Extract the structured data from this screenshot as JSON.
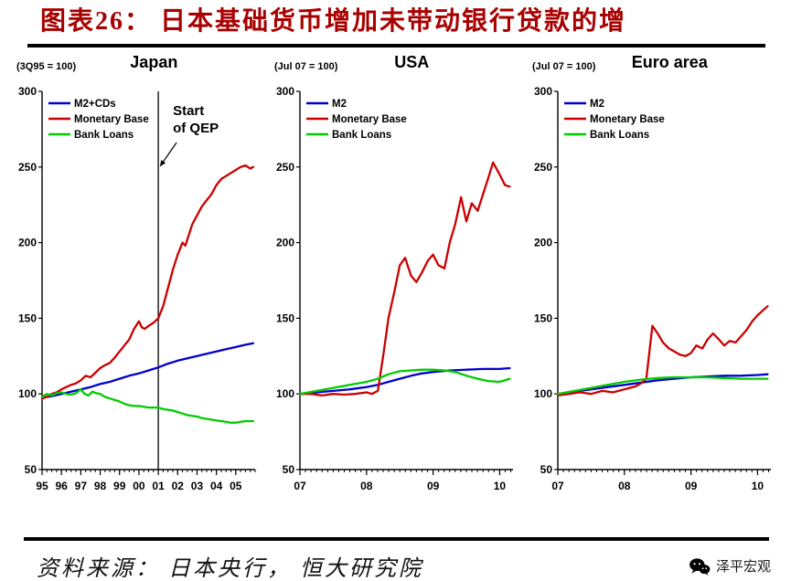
{
  "header": {
    "title": "图表26： 日本基础货币增加未带动银行贷款的增"
  },
  "footer": {
    "source": "资料来源： 日本央行， 恒大研究院",
    "brand": "泽平宏观"
  },
  "colors": {
    "title": "#a80000",
    "m2_blue": "#0000cc",
    "base_red": "#cc0000",
    "loans_green": "#00cc00"
  },
  "chart_data": [
    {
      "type": "line",
      "title": "Japan",
      "axis_note": "(3Q95 = 100)",
      "ylim": [
        50,
        300
      ],
      "ytick_step": 50,
      "xlim": [
        1995,
        2006
      ],
      "minor_xtick_step": 0.25,
      "xticks": [
        {
          "v": 1995,
          "label": "95"
        },
        {
          "v": 1996,
          "label": "96"
        },
        {
          "v": 1997,
          "label": "97"
        },
        {
          "v": 1998,
          "label": "98"
        },
        {
          "v": 1999,
          "label": "99"
        },
        {
          "v": 2000,
          "label": "00"
        },
        {
          "v": 2001,
          "label": "01"
        },
        {
          "v": 2002,
          "label": "02"
        },
        {
          "v": 2003,
          "label": "03"
        },
        {
          "v": 2004,
          "label": "04"
        },
        {
          "v": 2005,
          "label": "05"
        }
      ],
      "annotation": {
        "lines": [
          "Start",
          "of QEP"
        ],
        "x": 2001
      },
      "series": [
        {
          "name": "M2+CDs",
          "color": "#0000cc",
          "points": [
            [
              1995,
              97.5
            ],
            [
              1995.5,
              98.5
            ],
            [
              1996,
              100
            ],
            [
              1996.5,
              101.5
            ],
            [
              1997,
              103
            ],
            [
              1997.5,
              104.5
            ],
            [
              1998,
              106.5
            ],
            [
              1998.5,
              108
            ],
            [
              1999,
              110
            ],
            [
              1999.5,
              112
            ],
            [
              2000,
              113.5
            ],
            [
              2000.5,
              115.5
            ],
            [
              2001,
              117.5
            ],
            [
              2001.5,
              120
            ],
            [
              2002,
              122
            ],
            [
              2002.5,
              123.5
            ],
            [
              2003,
              125
            ],
            [
              2003.5,
              126.5
            ],
            [
              2004,
              128
            ],
            [
              2004.5,
              129.5
            ],
            [
              2005,
              131
            ],
            [
              2005.5,
              132.5
            ],
            [
              2005.9,
              133.5
            ]
          ]
        },
        {
          "name": "Monetary Base",
          "color": "#cc0000",
          "points": [
            [
              1995,
              97
            ],
            [
              1995.25,
              98
            ],
            [
              1995.5,
              100
            ],
            [
              1995.75,
              101
            ],
            [
              1996,
              103
            ],
            [
              1996.25,
              104.5
            ],
            [
              1996.5,
              106
            ],
            [
              1996.75,
              107
            ],
            [
              1997,
              109
            ],
            [
              1997.25,
              112
            ],
            [
              1997.5,
              111
            ],
            [
              1997.75,
              114
            ],
            [
              1998,
              117
            ],
            [
              1998.25,
              119
            ],
            [
              1998.5,
              120.5
            ],
            [
              1998.75,
              124
            ],
            [
              1999,
              128
            ],
            [
              1999.25,
              132
            ],
            [
              1999.5,
              136
            ],
            [
              1999.75,
              143
            ],
            [
              2000,
              148
            ],
            [
              2000.15,
              144
            ],
            [
              2000.3,
              143
            ],
            [
              2000.5,
              145
            ],
            [
              2000.75,
              147
            ],
            [
              2001,
              150
            ],
            [
              2001.25,
              158
            ],
            [
              2001.5,
              170
            ],
            [
              2001.75,
              182
            ],
            [
              2002,
              192
            ],
            [
              2002.25,
              200
            ],
            [
              2002.4,
              198
            ],
            [
              2002.6,
              206
            ],
            [
              2002.75,
              212
            ],
            [
              2003,
              218
            ],
            [
              2003.25,
              224
            ],
            [
              2003.5,
              228
            ],
            [
              2003.75,
              232
            ],
            [
              2004,
              238
            ],
            [
              2004.25,
              242
            ],
            [
              2004.5,
              244
            ],
            [
              2004.75,
              246
            ],
            [
              2005,
              248
            ],
            [
              2005.25,
              250
            ],
            [
              2005.5,
              251
            ],
            [
              2005.75,
              249
            ],
            [
              2005.9,
              250
            ]
          ]
        },
        {
          "name": "Bank Loans",
          "color": "#00cc00",
          "points": [
            [
              1995,
              98
            ],
            [
              1995.25,
              100
            ],
            [
              1995.5,
              99
            ],
            [
              1995.75,
              100.5
            ],
            [
              1996,
              101
            ],
            [
              1996.25,
              100
            ],
            [
              1996.5,
              99.5
            ],
            [
              1996.75,
              100.5
            ],
            [
              1997,
              103
            ],
            [
              1997.2,
              100
            ],
            [
              1997.4,
              99
            ],
            [
              1997.6,
              101.5
            ],
            [
              1997.8,
              100.5
            ],
            [
              1998,
              100
            ],
            [
              1998.25,
              98
            ],
            [
              1998.5,
              97
            ],
            [
              1998.75,
              96
            ],
            [
              1999,
              95
            ],
            [
              1999.25,
              93.5
            ],
            [
              1999.5,
              92.5
            ],
            [
              1999.75,
              92
            ],
            [
              2000,
              92
            ],
            [
              2000.25,
              91.5
            ],
            [
              2000.5,
              91
            ],
            [
              2000.75,
              91
            ],
            [
              2001,
              91
            ],
            [
              2001.25,
              90
            ],
            [
              2001.5,
              89.5
            ],
            [
              2001.75,
              89
            ],
            [
              2002,
              88
            ],
            [
              2002.25,
              87
            ],
            [
              2002.5,
              86
            ],
            [
              2002.75,
              85.5
            ],
            [
              2003,
              85
            ],
            [
              2003.25,
              84
            ],
            [
              2003.5,
              83.5
            ],
            [
              2003.75,
              83
            ],
            [
              2004,
              82.5
            ],
            [
              2004.25,
              82
            ],
            [
              2004.5,
              81.5
            ],
            [
              2004.75,
              81
            ],
            [
              2005,
              81
            ],
            [
              2005.25,
              81.5
            ],
            [
              2005.5,
              82
            ],
            [
              2005.9,
              82
            ]
          ]
        }
      ]
    },
    {
      "type": "line",
      "title": "USA",
      "axis_note": "(Jul 07 = 100)",
      "ylim": [
        50,
        300
      ],
      "ytick_step": 50,
      "xlim": [
        0,
        3.2
      ],
      "minor_xtick_step": 0.0833,
      "xticks": [
        {
          "v": 0,
          "label": "07"
        },
        {
          "v": 1,
          "label": "08"
        },
        {
          "v": 2,
          "label": "09"
        },
        {
          "v": 3,
          "label": "10"
        }
      ],
      "series": [
        {
          "name": "M2",
          "color": "#0000cc",
          "points": [
            [
              0,
              100
            ],
            [
              0.25,
              101
            ],
            [
              0.5,
              102
            ],
            [
              0.75,
              103
            ],
            [
              1,
              104.5
            ],
            [
              1.17,
              106
            ],
            [
              1.33,
              108
            ],
            [
              1.5,
              110
            ],
            [
              1.67,
              112
            ],
            [
              1.83,
              113.5
            ],
            [
              2,
              114.5
            ],
            [
              2.25,
              115.5
            ],
            [
              2.5,
              116
            ],
            [
              2.75,
              116.5
            ],
            [
              3,
              116.5
            ],
            [
              3.15,
              117
            ]
          ]
        },
        {
          "name": "Monetary Base",
          "color": "#cc0000",
          "points": [
            [
              0,
              100
            ],
            [
              0.17,
              100
            ],
            [
              0.33,
              99
            ],
            [
              0.5,
              100
            ],
            [
              0.67,
              99.5
            ],
            [
              0.83,
              100
            ],
            [
              1,
              101
            ],
            [
              1.08,
              100
            ],
            [
              1.17,
              102
            ],
            [
              1.25,
              125
            ],
            [
              1.33,
              150
            ],
            [
              1.42,
              168
            ],
            [
              1.5,
              185
            ],
            [
              1.58,
              190
            ],
            [
              1.67,
              178
            ],
            [
              1.75,
              174
            ],
            [
              1.83,
              180
            ],
            [
              1.92,
              188
            ],
            [
              2,
              192
            ],
            [
              2.08,
              185
            ],
            [
              2.17,
              183
            ],
            [
              2.25,
              200
            ],
            [
              2.33,
              212
            ],
            [
              2.42,
              230
            ],
            [
              2.5,
              214
            ],
            [
              2.58,
              226
            ],
            [
              2.67,
              221
            ],
            [
              2.75,
              232
            ],
            [
              2.83,
              243
            ],
            [
              2.9,
              253
            ],
            [
              3,
              245
            ],
            [
              3.08,
              238
            ],
            [
              3.15,
              237
            ]
          ]
        },
        {
          "name": "Bank Loans",
          "color": "#00cc00",
          "points": [
            [
              0,
              100
            ],
            [
              0.25,
              102
            ],
            [
              0.5,
              104
            ],
            [
              0.75,
              106
            ],
            [
              1,
              108
            ],
            [
              1.17,
              110
            ],
            [
              1.33,
              113
            ],
            [
              1.5,
              115
            ],
            [
              1.67,
              115.5
            ],
            [
              1.83,
              116
            ],
            [
              2,
              116
            ],
            [
              2.17,
              115.5
            ],
            [
              2.33,
              114.5
            ],
            [
              2.5,
              112
            ],
            [
              2.67,
              110
            ],
            [
              2.83,
              108.5
            ],
            [
              3,
              108
            ],
            [
              3.15,
              110
            ]
          ]
        }
      ]
    },
    {
      "type": "line",
      "title": "Euro area",
      "axis_note": "(Jul 07 = 100)",
      "ylim": [
        50,
        300
      ],
      "ytick_step": 50,
      "xlim": [
        0,
        3.2
      ],
      "minor_xtick_step": 0.0833,
      "xticks": [
        {
          "v": 0,
          "label": "07"
        },
        {
          "v": 1,
          "label": "08"
        },
        {
          "v": 2,
          "label": "09"
        },
        {
          "v": 3,
          "label": "10"
        }
      ],
      "series": [
        {
          "name": "M2",
          "color": "#0000cc",
          "points": [
            [
              0,
              100
            ],
            [
              0.25,
              101.5
            ],
            [
              0.5,
              103
            ],
            [
              0.75,
              104.5
            ],
            [
              1,
              106
            ],
            [
              1.25,
              107.5
            ],
            [
              1.5,
              109
            ],
            [
              1.75,
              110
            ],
            [
              2,
              111
            ],
            [
              2.25,
              111.5
            ],
            [
              2.5,
              112
            ],
            [
              2.75,
              112
            ],
            [
              3,
              112.5
            ],
            [
              3.15,
              113
            ]
          ]
        },
        {
          "name": "Monetary Base",
          "color": "#cc0000",
          "points": [
            [
              0,
              99
            ],
            [
              0.17,
              100
            ],
            [
              0.33,
              101
            ],
            [
              0.5,
              100
            ],
            [
              0.67,
              102
            ],
            [
              0.83,
              101
            ],
            [
              1,
              103
            ],
            [
              1.08,
              104
            ],
            [
              1.17,
              105
            ],
            [
              1.25,
              107
            ],
            [
              1.33,
              110
            ],
            [
              1.42,
              145
            ],
            [
              1.5,
              140
            ],
            [
              1.58,
              134
            ],
            [
              1.67,
              130
            ],
            [
              1.75,
              128
            ],
            [
              1.83,
              126
            ],
            [
              1.92,
              125
            ],
            [
              2,
              127
            ],
            [
              2.08,
              132
            ],
            [
              2.17,
              130
            ],
            [
              2.25,
              136
            ],
            [
              2.33,
              140
            ],
            [
              2.42,
              136
            ],
            [
              2.5,
              132
            ],
            [
              2.58,
              135
            ],
            [
              2.67,
              134
            ],
            [
              2.75,
              138
            ],
            [
              2.83,
              142
            ],
            [
              2.92,
              148
            ],
            [
              3,
              152
            ],
            [
              3.15,
              158
            ]
          ]
        },
        {
          "name": "Bank Loans",
          "color": "#00cc00",
          "points": [
            [
              0,
              100
            ],
            [
              0.25,
              102
            ],
            [
              0.5,
              104
            ],
            [
              0.75,
              106
            ],
            [
              1,
              108
            ],
            [
              1.25,
              109.5
            ],
            [
              1.5,
              110.5
            ],
            [
              1.75,
              111
            ],
            [
              2,
              111
            ],
            [
              2.25,
              111
            ],
            [
              2.5,
              110.5
            ],
            [
              2.75,
              110
            ],
            [
              3,
              110
            ],
            [
              3.15,
              110
            ]
          ]
        }
      ]
    }
  ]
}
